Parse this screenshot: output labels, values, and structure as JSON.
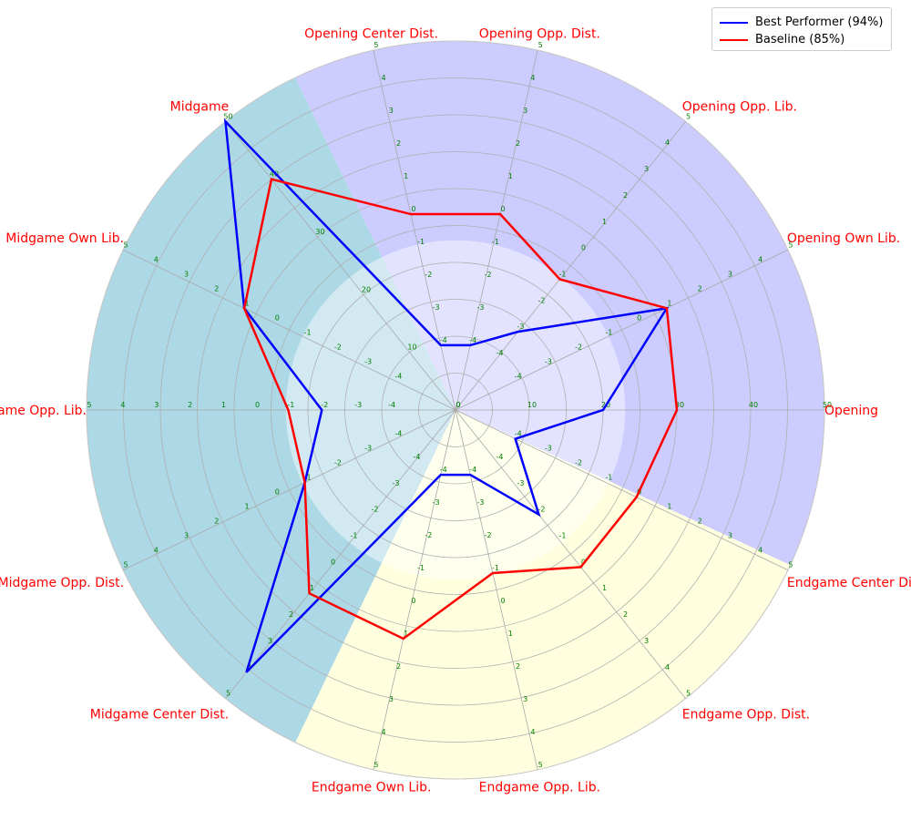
{
  "chart_data": {
    "type": "radar",
    "axes": [
      {
        "label": "Opening",
        "scale": "0-50",
        "ticks": [
          "0",
          "10",
          "20",
          "30",
          "40",
          "50"
        ]
      },
      {
        "label": "Opening Own Lib.",
        "scale": "-4..5",
        "ticks": [
          "-4",
          "-3",
          "-2",
          "-1",
          "0",
          "1",
          "2",
          "3",
          "4",
          "5"
        ]
      },
      {
        "label": "Opening Opp. Lib.",
        "scale": "-4..5",
        "ticks": [
          "-4",
          "-3",
          "-2",
          "-1",
          "0",
          "1",
          "2",
          "3",
          "4",
          "5"
        ]
      },
      {
        "label": "Opening Opp. Dist.",
        "scale": "-4..5",
        "ticks": [
          "-4",
          "-3",
          "-2",
          "-1",
          "0",
          "1",
          "2",
          "3",
          "4",
          "5"
        ]
      },
      {
        "label": "Opening Center Dist.",
        "scale": "-4..5",
        "ticks": [
          "-4",
          "-3",
          "-2",
          "-1",
          "0",
          "1",
          "2",
          "3",
          "4",
          "5"
        ]
      },
      {
        "label": "Midgame",
        "scale": "0-50",
        "ticks": [
          "0",
          "10",
          "20",
          "30",
          "40",
          "50"
        ]
      },
      {
        "label": "Midgame Own Lib.",
        "scale": "-4..5",
        "ticks": [
          "-4",
          "-3",
          "-2",
          "-1",
          "0",
          "1",
          "2",
          "3",
          "4",
          "5"
        ]
      },
      {
        "label": "Midgame Opp. Lib.",
        "scale": "-4..5",
        "ticks": [
          "-4",
          "-3",
          "-2",
          "-1",
          "0",
          "1",
          "2",
          "3",
          "4",
          "5"
        ]
      },
      {
        "label": "Midgame Opp. Dist.",
        "scale": "-4..5",
        "ticks": [
          "-4",
          "-3",
          "-2",
          "-1",
          "0",
          "1",
          "2",
          "3",
          "4",
          "5"
        ]
      },
      {
        "label": "Midgame Center Dist.",
        "scale": "-4..5",
        "ticks": [
          "-4",
          "-3",
          "-2",
          "-1",
          "0",
          "1",
          "2",
          "3",
          "4",
          "5"
        ]
      },
      {
        "label": "Endgame Own Lib.",
        "scale": "-4..5",
        "ticks": [
          "-4",
          "-3",
          "-2",
          "-1",
          "0",
          "1",
          "2",
          "3",
          "4",
          "5"
        ]
      },
      {
        "label": "Endgame Opp. Lib.",
        "scale": "-4..5",
        "ticks": [
          "-4",
          "-3",
          "-2",
          "-1",
          "0",
          "1",
          "2",
          "3",
          "4",
          "5"
        ]
      },
      {
        "label": "Endgame Opp. Dist.",
        "scale": "-4..5",
        "ticks": [
          "-4",
          "-3",
          "-2",
          "-1",
          "0",
          "1",
          "2",
          "3",
          "4",
          "5"
        ]
      },
      {
        "label": "Endgame Center Dist.",
        "scale": "-4..5",
        "ticks": [
          "-4",
          "-3",
          "-2",
          "-1",
          "0",
          "1",
          "2",
          "3",
          "4",
          "5"
        ]
      }
    ],
    "series": [
      {
        "name": "Best Performer (94%)",
        "color": "#0000ff",
        "values": [
          20,
          1,
          -3,
          -4,
          -4,
          50,
          1,
          -2,
          -1,
          4,
          -4,
          -4,
          -2,
          -4
        ]
      },
      {
        "name": "Baseline (85%)",
        "color": "#ff0000",
        "values": [
          30,
          1,
          -1,
          0,
          0,
          40,
          1,
          -1,
          -1,
          1,
          1,
          -1,
          0,
          0
        ]
      }
    ],
    "phase_backgrounds": [
      {
        "phase": "Opening",
        "color": "#ccccff"
      },
      {
        "phase": "Midgame",
        "color": "#add8e6"
      },
      {
        "phase": "Endgame",
        "color": "#ffffe0"
      }
    ],
    "label_color": "#ff0000",
    "tick_color": "#008000",
    "grid": true,
    "legend": {
      "position": "top-right",
      "entries": [
        "Best Performer (94%)",
        "Baseline (85%)"
      ]
    }
  }
}
